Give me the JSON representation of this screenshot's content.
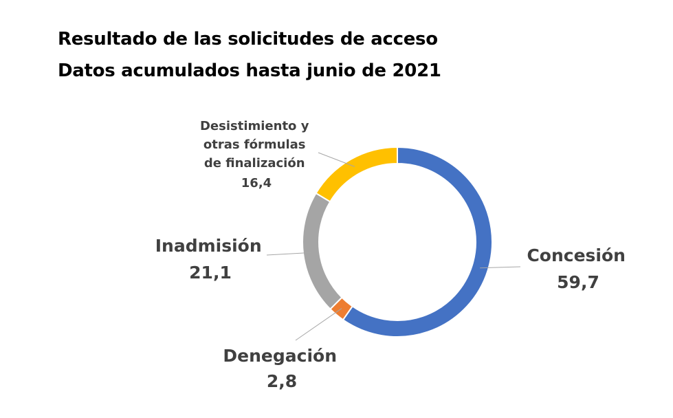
{
  "title": {
    "line1": "Resultado de las solicitudes de acceso",
    "line2": "Datos acumulados hasta junio de 2021"
  },
  "chart_data": {
    "type": "pie",
    "variant": "doughnut",
    "start_angle_deg": 0,
    "direction": "clockwise",
    "slices": [
      {
        "key": "concesion",
        "label": "Concesión",
        "value": 59.7,
        "value_label": "59,7",
        "color": "#4472C4"
      },
      {
        "key": "denegacion",
        "label": "Denegación",
        "value": 2.8,
        "value_label": "2,8",
        "color": "#ED7D31"
      },
      {
        "key": "inadmision",
        "label": "Inadmisión",
        "value": 21.1,
        "value_label": "21,1",
        "color": "#A5A5A5"
      },
      {
        "key": "desistimiento",
        "label": "Desistimiento y otras fórmulas de finalización",
        "label_lines": [
          "Desistimiento y",
          "otras fórmulas",
          "de finalización"
        ],
        "value": 16.4,
        "value_label": "16,4",
        "color": "#FFC000"
      }
    ]
  }
}
